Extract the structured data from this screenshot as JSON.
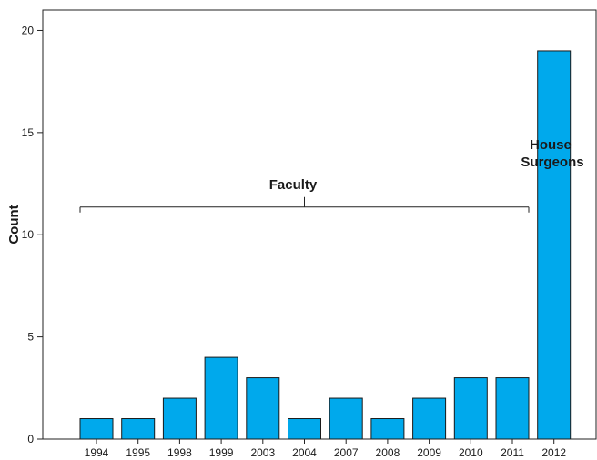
{
  "chart_data": {
    "type": "bar",
    "categories": [
      "1994",
      "1995",
      "1998",
      "1999",
      "2003",
      "2004",
      "2007",
      "2008",
      "2009",
      "2010",
      "2011",
      "2012"
    ],
    "values": [
      1,
      1,
      2,
      4,
      3,
      1,
      2,
      1,
      2,
      3,
      3,
      19
    ],
    "ylabel": "Count",
    "xlabel": "",
    "ylim": [
      0,
      21
    ],
    "yticks": [
      0,
      5,
      10,
      15,
      20
    ],
    "grid": false,
    "bar_color": "#00a9ec",
    "annotations": {
      "faculty": {
        "label": "Faculty",
        "bracket_level": 11,
        "span": [
          "1994",
          "2011"
        ]
      },
      "house_surgeons": {
        "lines": [
          "House",
          "Surgeons"
        ],
        "category": "2012"
      }
    }
  }
}
